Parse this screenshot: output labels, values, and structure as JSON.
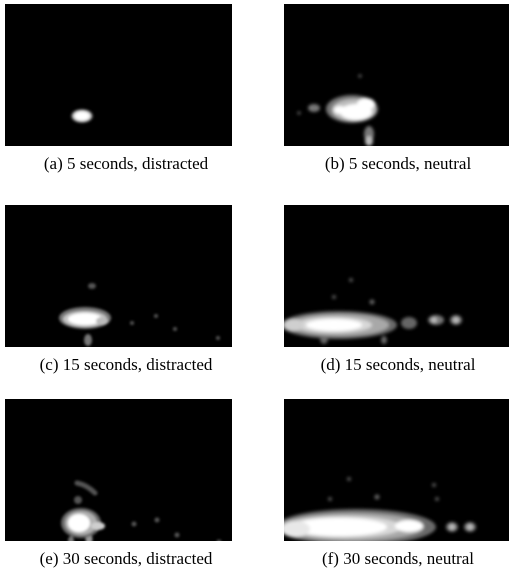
{
  "figure": {
    "panels": [
      {
        "id": "a",
        "caption": "(a) 5 seconds, distracted"
      },
      {
        "id": "b",
        "caption": "(b) 5 seconds, neutral"
      },
      {
        "id": "c",
        "caption": "(c) 15 seconds, distracted"
      },
      {
        "id": "d",
        "caption": "(d) 15 seconds, neutral"
      },
      {
        "id": "e",
        "caption": "(e) 30 seconds, distracted"
      },
      {
        "id": "f",
        "caption": "(f) 30 seconds, neutral"
      }
    ],
    "colors": {
      "background": "#000000",
      "hot": "#ffffff",
      "mid": "#a8a8a8",
      "low": "#4a4a4a"
    }
  }
}
